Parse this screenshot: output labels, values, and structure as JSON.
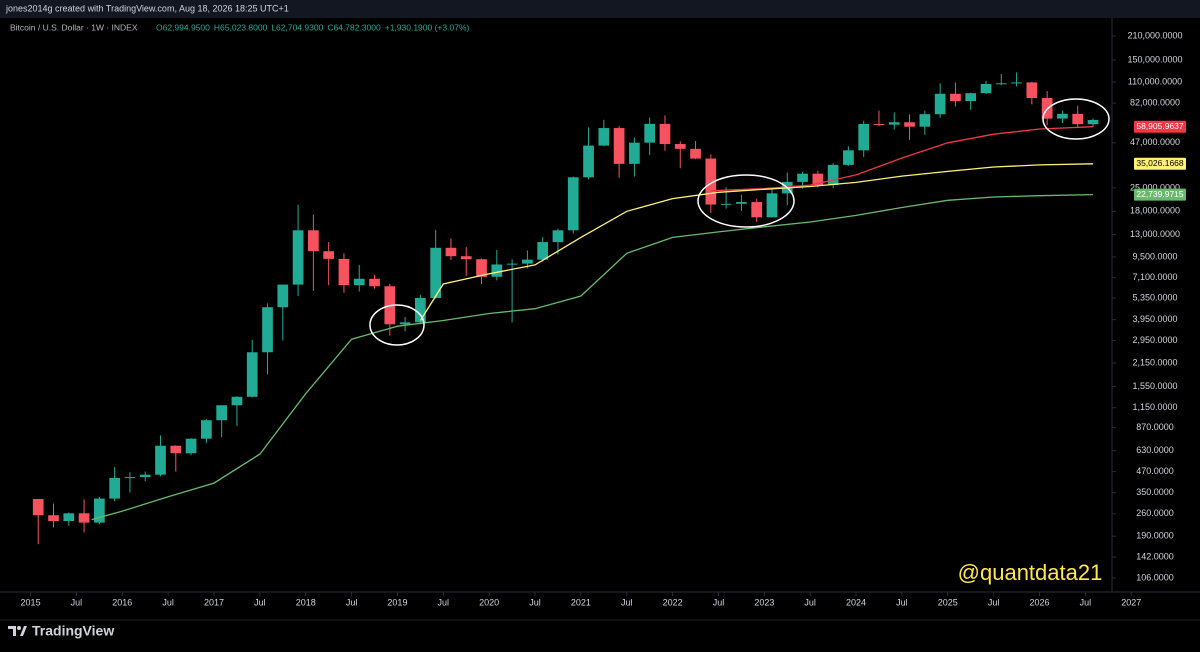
{
  "header": {
    "text": "jones2014g created with TradingView.com, Aug 18, 2026 18:25 UTC+1"
  },
  "footer": {
    "brand": "TradingView"
  },
  "chart_data": {
    "type": "candlestick",
    "symbol": "Bitcoin / U.S. Dollar · 1W · INDEX",
    "ohlc_legend": [
      "O62,994.9500",
      "H65,023.8000",
      "L62,704.9300",
      "C64,782.3000",
      "+1,930.1900 (+3.07%)"
    ],
    "watermark": "@quantdata21",
    "log_scale": true,
    "grid": false,
    "up_color": "#22ab94",
    "down_color": "#f7525f",
    "x": [
      "2015-01",
      "2015-03",
      "2015-05",
      "2015-07",
      "2015-09",
      "2015-11",
      "2016-01",
      "2016-03",
      "2016-05",
      "2016-07",
      "2016-09",
      "2016-11",
      "2017-01",
      "2017-03",
      "2017-05",
      "2017-07",
      "2017-09",
      "2017-11",
      "2018-01",
      "2018-03",
      "2018-05",
      "2018-07",
      "2018-09",
      "2018-11",
      "2019-01",
      "2019-03",
      "2019-05",
      "2019-07",
      "2019-09",
      "2019-11",
      "2020-01",
      "2020-03",
      "2020-05",
      "2020-07",
      "2020-09",
      "2020-11",
      "2021-01",
      "2021-03",
      "2021-05",
      "2021-07",
      "2021-09",
      "2021-11",
      "2022-01",
      "2022-03",
      "2022-05",
      "2022-07",
      "2022-09",
      "2022-11",
      "2023-01",
      "2023-03",
      "2023-05",
      "2023-07",
      "2023-09",
      "2023-11",
      "2024-01",
      "2024-03",
      "2024-05",
      "2024-07",
      "2024-09",
      "2024-11",
      "2025-01",
      "2025-03",
      "2025-05",
      "2025-07",
      "2025-09",
      "2025-11",
      "2026-01",
      "2026-03",
      "2026-05",
      "2026-07"
    ],
    "open": [
      320,
      255,
      235,
      262,
      230,
      322,
      430,
      435,
      450,
      675,
      608,
      745,
      965,
      1190,
      1340,
      2500,
      4700,
      6450,
      13800,
      10300,
      9250,
      6400,
      7000,
      6300,
      3700,
      3800,
      5350,
      10800,
      9600,
      9200,
      7200,
      8550,
      8650,
      9150,
      11700,
      13800,
      29000,
      45200,
      57800,
      35000,
      47100,
      61300,
      46200,
      43200,
      37700,
      19800,
      20000,
      20500,
      16550,
      23150,
      27200,
      30500,
      26000,
      34500,
      42300,
      61200,
      60600,
      62700,
      58900,
      70200,
      93400,
      84300,
      94200,
      107100,
      108200,
      109500,
      88000,
      66000,
      70500,
      61000
    ],
    "high": [
      320,
      300,
      265,
      318,
      330,
      500,
      465,
      470,
      780,
      680,
      750,
      980,
      1190,
      1350,
      2980,
      4950,
      6450,
      19700,
      17200,
      11700,
      10000,
      8500,
      7400,
      6500,
      4100,
      5600,
      13900,
      12300,
      10900,
      9300,
      10500,
      9200,
      10400,
      12500,
      14100,
      29300,
      58300,
      64900,
      59600,
      50500,
      67000,
      69000,
      48000,
      48200,
      40000,
      25200,
      22700,
      21500,
      25200,
      31000,
      31400,
      31800,
      35300,
      44700,
      64000,
      73800,
      72000,
      70000,
      73600,
      108300,
      109300,
      95000,
      112000,
      123200,
      126000,
      110500,
      97000,
      74000,
      79000,
      66000
    ],
    "low": [
      170,
      215,
      220,
      200,
      225,
      310,
      350,
      410,
      440,
      470,
      590,
      700,
      760,
      890,
      1330,
      1830,
      2950,
      5500,
      5900,
      6400,
      5750,
      5850,
      6100,
      3150,
      3350,
      3700,
      5300,
      9100,
      7300,
      6500,
      6850,
      3800,
      8100,
      8900,
      9850,
      13200,
      28100,
      44900,
      28800,
      29300,
      39600,
      42000,
      32900,
      37400,
      17600,
      18700,
      18100,
      15500,
      16500,
      19600,
      24800,
      25200,
      24900,
      34100,
      38500,
      59200,
      56500,
      49000,
      52500,
      66800,
      78200,
      74500,
      93300,
      105200,
      103500,
      80500,
      60000,
      62000,
      58000,
      58500
    ],
    "close": [
      255,
      235,
      262,
      230,
      322,
      430,
      435,
      450,
      675,
      608,
      745,
      965,
      1190,
      1340,
      2500,
      4700,
      6450,
      13800,
      10300,
      9250,
      6400,
      7000,
      6300,
      3700,
      3800,
      5350,
      10800,
      9600,
      9200,
      7200,
      8550,
      8650,
      9150,
      11700,
      13800,
      29000,
      45200,
      57800,
      35000,
      47100,
      61300,
      46200,
      43200,
      37700,
      19800,
      20000,
      20500,
      16550,
      23150,
      27200,
      30500,
      26000,
      34500,
      42300,
      61200,
      60600,
      62700,
      58900,
      70200,
      93400,
      84300,
      94200,
      107100,
      108200,
      109500,
      88000,
      66000,
      70500,
      61000,
      64782.3
    ],
    "lines": [
      {
        "color": "#f23645",
        "text_color": "#ffffff",
        "x": [
          "2022-06",
          "2023-01",
          "2023-07",
          "2024-01",
          "2024-07",
          "2025-01",
          "2025-07",
          "2026-01",
          "2026-08"
        ],
        "values": [
          24000,
          24800,
          26000,
          30000,
          38000,
          47000,
          53000,
          57000,
          58905.9637
        ],
        "last_label": "58,905.9637"
      },
      {
        "color": "#fff176",
        "text_color": "#000000",
        "x": [
          "2019-04",
          "2019-07",
          "2020-01",
          "2020-07",
          "2021-01",
          "2021-07",
          "2022-01",
          "2022-07",
          "2023-01",
          "2023-07",
          "2024-01",
          "2024-07",
          "2025-01",
          "2025-07",
          "2026-01",
          "2026-08"
        ],
        "values": [
          3900,
          6500,
          7500,
          8500,
          12500,
          18000,
          21500,
          23500,
          24500,
          25500,
          27000,
          29500,
          31500,
          33500,
          34500,
          35026.1668
        ],
        "last_label": "35,026.1668"
      },
      {
        "color": "#66bb6a",
        "text_color": "#ffffff",
        "x": [
          "2015-09",
          "2016-01",
          "2016-07",
          "2017-01",
          "2017-07",
          "2018-01",
          "2018-07",
          "2019-01",
          "2019-07",
          "2020-01",
          "2020-07",
          "2021-01",
          "2021-07",
          "2022-01",
          "2022-07",
          "2023-01",
          "2023-07",
          "2024-01",
          "2024-07",
          "2025-01",
          "2025-07",
          "2026-01",
          "2026-08"
        ],
        "values": [
          240,
          270,
          330,
          400,
          600,
          1400,
          3000,
          3600,
          3900,
          4300,
          4600,
          5500,
          10000,
          12500,
          13500,
          14500,
          15500,
          17000,
          19000,
          21000,
          22000,
          22400,
          22739.9715
        ],
        "last_label": "22,739.9715"
      }
    ],
    "xlim": [
      "2014-09",
      "2027-10"
    ],
    "xticks": [
      {
        "value": "2015-01",
        "label": "2015"
      },
      {
        "value": "2015-07",
        "label": "Jul"
      },
      {
        "value": "2016-01",
        "label": "2016"
      },
      {
        "value": "2016-07",
        "label": "Jul"
      },
      {
        "value": "2017-01",
        "label": "2017"
      },
      {
        "value": "2017-07",
        "label": "Jul"
      },
      {
        "value": "2018-01",
        "label": "2018"
      },
      {
        "value": "2018-07",
        "label": "Jul"
      },
      {
        "value": "2019-01",
        "label": "2019"
      },
      {
        "value": "2019-07",
        "label": "Jul"
      },
      {
        "value": "2020-01",
        "label": "2020"
      },
      {
        "value": "2020-07",
        "label": "Jul"
      },
      {
        "value": "2021-01",
        "label": "2021"
      },
      {
        "value": "2021-07",
        "label": "Jul"
      },
      {
        "value": "2022-01",
        "label": "2022"
      },
      {
        "value": "2022-07",
        "label": "Jul"
      },
      {
        "value": "2023-01",
        "label": "2023"
      },
      {
        "value": "2023-07",
        "label": "Jul"
      },
      {
        "value": "2024-01",
        "label": "2024"
      },
      {
        "value": "2024-07",
        "label": "Jul"
      },
      {
        "value": "2025-01",
        "label": "2025"
      },
      {
        "value": "2025-07",
        "label": "Jul"
      },
      {
        "value": "2026-01",
        "label": "2026"
      },
      {
        "value": "2026-07",
        "label": "Jul"
      },
      {
        "value": "2027-01",
        "label": "2027"
      }
    ],
    "ylim": [
      87,
      270000
    ],
    "yticks": [
      {
        "value": 210000,
        "label": "210,000.0000"
      },
      {
        "value": 150000,
        "label": "150,000.0000"
      },
      {
        "value": 110000,
        "label": "110,000.0000"
      },
      {
        "value": 82000,
        "label": "82,000.0000"
      },
      {
        "value": 47000,
        "label": "47,000.0000"
      },
      {
        "value": 25000,
        "label": "25,000.0000"
      },
      {
        "value": 18000,
        "label": "18,000.0000"
      },
      {
        "value": 13000,
        "label": "13,000.0000"
      },
      {
        "value": 9500,
        "label": "9,500.0000"
      },
      {
        "value": 7100,
        "label": "7,100.0000"
      },
      {
        "value": 5350,
        "label": "5,350.0000"
      },
      {
        "value": 3950,
        "label": "3,950.0000"
      },
      {
        "value": 2950,
        "label": "2,950.0000"
      },
      {
        "value": 2150,
        "label": "2,150.0000"
      },
      {
        "value": 1550,
        "label": "1,550.0000"
      },
      {
        "value": 1150,
        "label": "1,150.0000"
      },
      {
        "value": 870,
        "label": "870.0000"
      },
      {
        "value": 630,
        "label": "630.0000"
      },
      {
        "value": 470,
        "label": "470.0000"
      },
      {
        "value": 350,
        "label": "350.0000"
      },
      {
        "value": 260,
        "label": "260.0000"
      },
      {
        "value": 190,
        "label": "190.0000"
      },
      {
        "value": 142,
        "label": "142.0000"
      },
      {
        "value": 106,
        "label": "106.0000"
      }
    ]
  }
}
